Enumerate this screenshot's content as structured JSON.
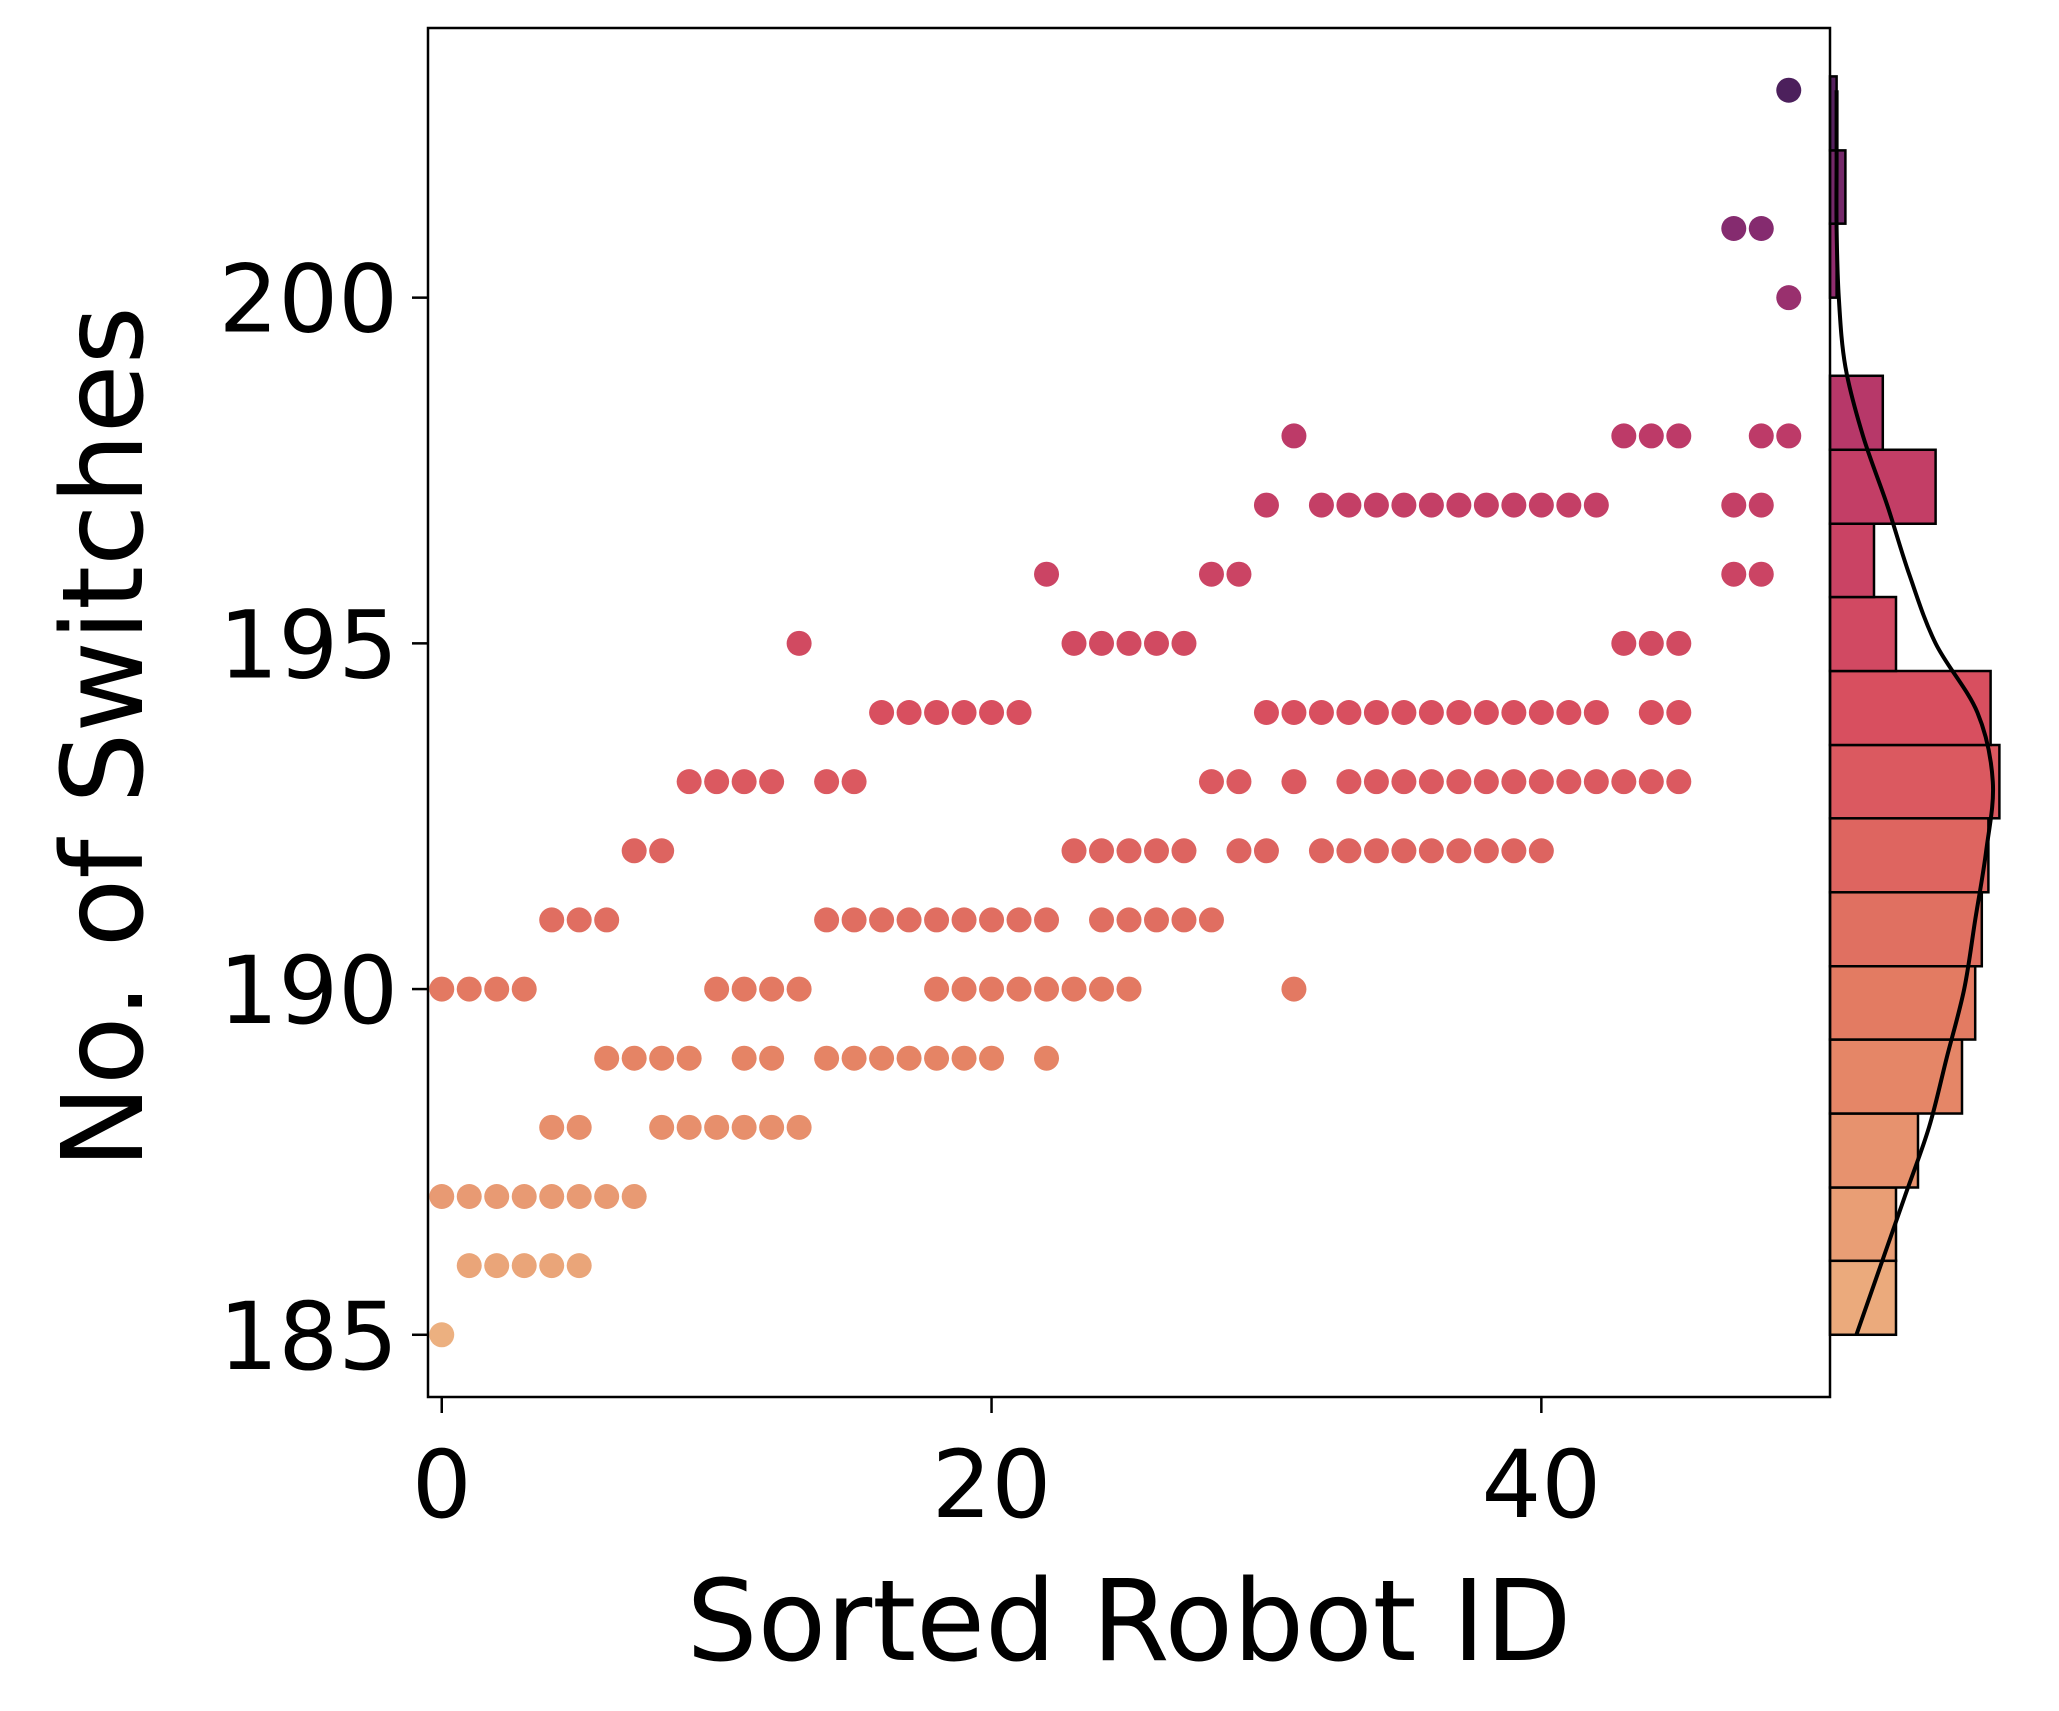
{
  "chart_data": {
    "type": "scatter",
    "title": "",
    "xlabel": "Sorted Robot ID",
    "ylabel": "No. of Switches",
    "xlim": [
      -0.5,
      50.5
    ],
    "ylim": [
      184.1,
      203.9
    ],
    "xticks": [
      0,
      20,
      40
    ],
    "yticks": [
      185,
      190,
      195,
      200
    ],
    "grid": false,
    "colormap": "flare",
    "series_points": [
      [
        0,
        190
      ],
      [
        0,
        187
      ],
      [
        0,
        185
      ],
      [
        1,
        190
      ],
      [
        1,
        187
      ],
      [
        1,
        186
      ],
      [
        2,
        190
      ],
      [
        2,
        187
      ],
      [
        2,
        186
      ],
      [
        3,
        190
      ],
      [
        3,
        187
      ],
      [
        3,
        186
      ],
      [
        4,
        191
      ],
      [
        4,
        188
      ],
      [
        4,
        187
      ],
      [
        4,
        186
      ],
      [
        5,
        191
      ],
      [
        5,
        188
      ],
      [
        5,
        187
      ],
      [
        5,
        186
      ],
      [
        6,
        191
      ],
      [
        6,
        189
      ],
      [
        6,
        187
      ],
      [
        7,
        192
      ],
      [
        7,
        189
      ],
      [
        7,
        187
      ],
      [
        8,
        192
      ],
      [
        8,
        189
      ],
      [
        8,
        188
      ],
      [
        9,
        193
      ],
      [
        9,
        189
      ],
      [
        9,
        188
      ],
      [
        10,
        193
      ],
      [
        10,
        190
      ],
      [
        10,
        188
      ],
      [
        11,
        193
      ],
      [
        11,
        190
      ],
      [
        11,
        189
      ],
      [
        11,
        188
      ],
      [
        12,
        193
      ],
      [
        12,
        190
      ],
      [
        12,
        189
      ],
      [
        12,
        188
      ],
      [
        13,
        195
      ],
      [
        13,
        190
      ],
      [
        13,
        188
      ],
      [
        14,
        193
      ],
      [
        14,
        191
      ],
      [
        14,
        189
      ],
      [
        15,
        193
      ],
      [
        15,
        191
      ],
      [
        15,
        189
      ],
      [
        16,
        194
      ],
      [
        16,
        191
      ],
      [
        16,
        189
      ],
      [
        17,
        194
      ],
      [
        17,
        191
      ],
      [
        17,
        189
      ],
      [
        18,
        194
      ],
      [
        18,
        191
      ],
      [
        18,
        190
      ],
      [
        18,
        189
      ],
      [
        19,
        194
      ],
      [
        19,
        191
      ],
      [
        19,
        190
      ],
      [
        19,
        189
      ],
      [
        20,
        194
      ],
      [
        20,
        191
      ],
      [
        20,
        190
      ],
      [
        20,
        189
      ],
      [
        21,
        194
      ],
      [
        21,
        191
      ],
      [
        21,
        190
      ],
      [
        22,
        196
      ],
      [
        22,
        191
      ],
      [
        22,
        190
      ],
      [
        22,
        189
      ],
      [
        23,
        195
      ],
      [
        23,
        192
      ],
      [
        23,
        190
      ],
      [
        24,
        195
      ],
      [
        24,
        192
      ],
      [
        24,
        191
      ],
      [
        24,
        190
      ],
      [
        25,
        195
      ],
      [
        25,
        192
      ],
      [
        25,
        191
      ],
      [
        25,
        190
      ],
      [
        26,
        195
      ],
      [
        26,
        192
      ],
      [
        26,
        191
      ],
      [
        27,
        195
      ],
      [
        27,
        192
      ],
      [
        27,
        191
      ],
      [
        28,
        196
      ],
      [
        28,
        193
      ],
      [
        28,
        191
      ],
      [
        29,
        196
      ],
      [
        29,
        193
      ],
      [
        29,
        192
      ],
      [
        30,
        197
      ],
      [
        30,
        194
      ],
      [
        30,
        192
      ],
      [
        31,
        198
      ],
      [
        31,
        194
      ],
      [
        31,
        193
      ],
      [
        31,
        190
      ],
      [
        32,
        197
      ],
      [
        32,
        194
      ],
      [
        32,
        192
      ],
      [
        33,
        197
      ],
      [
        33,
        194
      ],
      [
        33,
        193
      ],
      [
        33,
        192
      ],
      [
        34,
        197
      ],
      [
        34,
        194
      ],
      [
        34,
        193
      ],
      [
        34,
        192
      ],
      [
        35,
        197
      ],
      [
        35,
        194
      ],
      [
        35,
        193
      ],
      [
        35,
        192
      ],
      [
        36,
        197
      ],
      [
        36,
        194
      ],
      [
        36,
        193
      ],
      [
        36,
        192
      ],
      [
        37,
        197
      ],
      [
        37,
        194
      ],
      [
        37,
        193
      ],
      [
        37,
        192
      ],
      [
        38,
        197
      ],
      [
        38,
        194
      ],
      [
        38,
        193
      ],
      [
        38,
        192
      ],
      [
        39,
        197
      ],
      [
        39,
        194
      ],
      [
        39,
        193
      ],
      [
        39,
        192
      ],
      [
        40,
        197
      ],
      [
        40,
        194
      ],
      [
        40,
        193
      ],
      [
        40,
        192
      ],
      [
        41,
        197
      ],
      [
        41,
        194
      ],
      [
        41,
        193
      ],
      [
        42,
        197
      ],
      [
        42,
        194
      ],
      [
        42,
        193
      ],
      [
        43,
        198
      ],
      [
        43,
        195
      ],
      [
        43,
        193
      ],
      [
        44,
        198
      ],
      [
        44,
        195
      ],
      [
        44,
        194
      ],
      [
        44,
        193
      ],
      [
        45,
        198
      ],
      [
        45,
        195
      ],
      [
        45,
        194
      ],
      [
        45,
        193
      ],
      [
        47,
        201
      ],
      [
        47,
        197
      ],
      [
        47,
        196
      ],
      [
        48,
        201
      ],
      [
        48,
        198
      ],
      [
        48,
        197
      ],
      [
        48,
        196
      ],
      [
        49,
        203
      ],
      [
        49,
        200
      ],
      [
        49,
        198
      ]
    ],
    "marginal_histogram": {
      "orientation": "horizontal",
      "bins": [
        {
          "y0": 185.0,
          "y1": 186.07,
          "count": 3
        },
        {
          "y0": 186.07,
          "y1": 187.13,
          "count": 3
        },
        {
          "y0": 187.13,
          "y1": 188.2,
          "count": 4
        },
        {
          "y0": 188.2,
          "y1": 189.27,
          "count": 6
        },
        {
          "y0": 189.27,
          "y1": 190.33,
          "count": 6.6
        },
        {
          "y0": 190.33,
          "y1": 191.4,
          "count": 6.9
        },
        {
          "y0": 191.4,
          "y1": 192.47,
          "count": 7.2
        },
        {
          "y0": 192.47,
          "y1": 193.53,
          "count": 7.7
        },
        {
          "y0": 193.53,
          "y1": 194.6,
          "count": 7.3
        },
        {
          "y0": 194.6,
          "y1": 195.67,
          "count": 3
        },
        {
          "y0": 195.67,
          "y1": 196.73,
          "count": 2
        },
        {
          "y0": 196.73,
          "y1": 197.8,
          "count": 4.8
        },
        {
          "y0": 197.8,
          "y1": 198.87,
          "count": 2.4
        },
        {
          "y0": 200.0,
          "y1": 201.07,
          "count": 0.3
        },
        {
          "y0": 201.07,
          "y1": 202.13,
          "count": 0.7
        },
        {
          "y0": 202.13,
          "y1": 203.2,
          "count": 0.3
        }
      ],
      "kde": [
        [
          185.0,
          1.2
        ],
        [
          186.0,
          2.3
        ],
        [
          187.0,
          3.4
        ],
        [
          188.0,
          4.5
        ],
        [
          189.0,
          5.3
        ],
        [
          190.0,
          6.1
        ],
        [
          191.0,
          6.6
        ],
        [
          192.0,
          7.1
        ],
        [
          193.0,
          7.4
        ],
        [
          194.0,
          6.7
        ],
        [
          195.0,
          4.8
        ],
        [
          196.0,
          3.6
        ],
        [
          197.0,
          2.6
        ],
        [
          198.0,
          1.5
        ],
        [
          199.0,
          0.7
        ],
        [
          200.0,
          0.4
        ],
        [
          201.0,
          0.3
        ],
        [
          202.0,
          0.3
        ],
        [
          203.0,
          0.3
        ]
      ]
    }
  }
}
